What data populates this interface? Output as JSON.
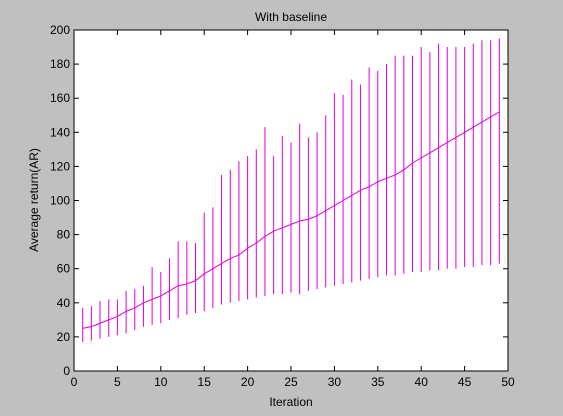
{
  "chart_data": {
    "type": "line",
    "title": "With baseline",
    "xlabel": "Iteration",
    "ylabel": "Average return(AR)",
    "xlim": [
      0,
      50
    ],
    "ylim": [
      0,
      200
    ],
    "xticks": [
      0,
      5,
      10,
      15,
      20,
      25,
      30,
      35,
      40,
      45,
      50
    ],
    "yticks": [
      0,
      20,
      40,
      60,
      80,
      100,
      120,
      140,
      160,
      180,
      200
    ],
    "grid": false,
    "series": [
      {
        "color": "#e000e0",
        "error_bars": true,
        "x": [
          1,
          2,
          3,
          4,
          5,
          6,
          7,
          8,
          9,
          10,
          11,
          12,
          13,
          14,
          15,
          16,
          17,
          18,
          19,
          20,
          21,
          22,
          23,
          24,
          25,
          26,
          27,
          28,
          29,
          30,
          31,
          32,
          33,
          34,
          35,
          36,
          37,
          38,
          39,
          40,
          41,
          42,
          43,
          44,
          45,
          46,
          47,
          48,
          49
        ],
        "y": [
          25,
          26,
          28,
          30,
          32,
          35,
          37,
          40,
          42,
          44,
          47,
          50,
          51,
          53,
          57,
          60,
          63,
          66,
          68,
          72,
          75,
          79,
          82,
          84,
          86,
          88,
          89,
          91,
          94,
          97,
          100,
          103,
          106,
          108,
          111,
          113,
          115,
          118,
          122,
          125,
          128,
          131,
          134,
          137,
          140,
          143,
          146,
          149,
          152
        ],
        "lower": [
          17,
          18,
          19,
          20,
          21,
          22,
          24,
          26,
          27,
          28,
          30,
          31,
          33,
          34,
          35,
          37,
          39,
          40,
          41,
          42,
          43,
          44,
          45,
          45,
          46,
          45,
          47,
          48,
          49,
          50,
          51,
          52,
          53,
          54,
          55,
          56,
          56,
          57,
          58,
          58,
          59,
          59,
          60,
          60,
          61,
          61,
          62,
          62,
          63
        ],
        "upper": [
          37,
          38,
          41,
          42,
          42,
          47,
          48,
          50,
          61,
          58,
          66,
          76,
          76,
          75,
          93,
          96,
          115,
          118,
          123,
          126,
          130,
          143,
          126,
          138,
          134,
          145,
          137,
          140,
          150,
          163,
          162,
          171,
          168,
          178,
          176,
          180,
          185,
          185,
          185,
          190,
          187,
          192,
          190,
          190,
          190,
          192,
          194,
          194,
          195
        ]
      }
    ]
  }
}
